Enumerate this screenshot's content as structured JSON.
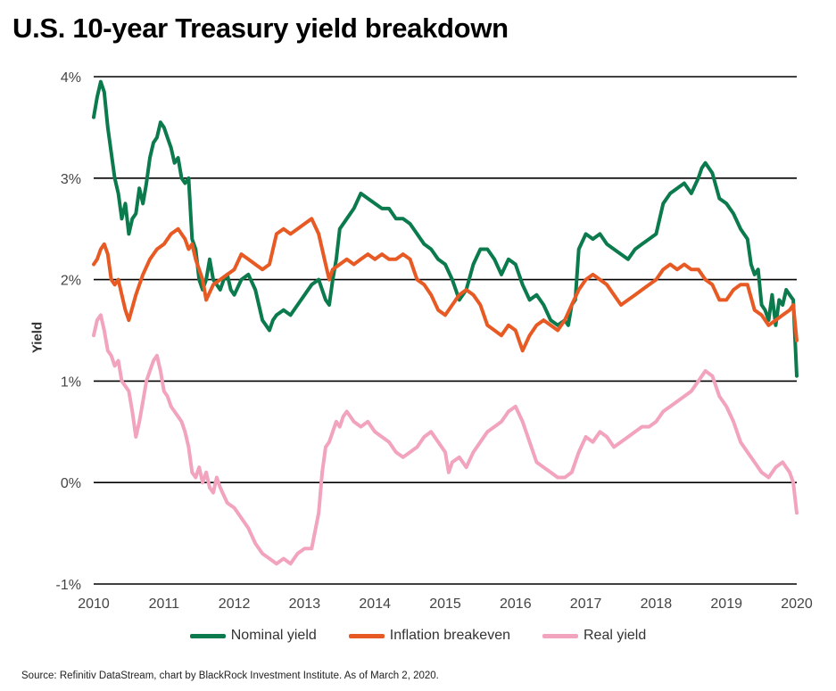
{
  "title": "U.S. 10-year Treasury yield breakdown",
  "source": "Source: Refinitiv DataStream, chart by BlackRock Investment Institute. As of March 2, 2020.",
  "chart_data": {
    "type": "line",
    "title": "U.S. 10-year Treasury yield breakdown",
    "xlabel": "",
    "ylabel": "Yield",
    "xlim": [
      2010,
      2020
    ],
    "ylim": [
      -1,
      4
    ],
    "x_ticks": [
      "2010",
      "2011",
      "2012",
      "2013",
      "2014",
      "2015",
      "2016",
      "2017",
      "2018",
      "2019",
      "2020"
    ],
    "y_ticks": [
      {
        "value": 4,
        "label": "4%"
      },
      {
        "value": 3,
        "label": "3%"
      },
      {
        "value": 2,
        "label": "2%"
      },
      {
        "value": 1,
        "label": "1%"
      },
      {
        "value": 0,
        "label": "0%"
      },
      {
        "value": -1,
        "label": "-1%"
      }
    ],
    "grid": true,
    "legend_position": "bottom-center",
    "series": [
      {
        "name": "Nominal yield",
        "color": "#0b7a4d",
        "x": [
          2010.0,
          2010.05,
          2010.1,
          2010.15,
          2010.2,
          2010.25,
          2010.3,
          2010.35,
          2010.4,
          2010.45,
          2010.5,
          2010.55,
          2010.6,
          2010.65,
          2010.7,
          2010.75,
          2010.8,
          2010.85,
          2010.9,
          2010.95,
          2011.0,
          2011.05,
          2011.1,
          2011.15,
          2011.2,
          2011.25,
          2011.3,
          2011.35,
          2011.4,
          2011.45,
          2011.5,
          2011.55,
          2011.6,
          2011.65,
          2011.7,
          2011.75,
          2011.8,
          2011.85,
          2011.9,
          2011.95,
          2012.0,
          2012.1,
          2012.2,
          2012.3,
          2012.4,
          2012.45,
          2012.5,
          2012.55,
          2012.6,
          2012.7,
          2012.8,
          2012.9,
          2013.0,
          2013.1,
          2013.2,
          2013.3,
          2013.35,
          2013.4,
          2013.45,
          2013.5,
          2013.6,
          2013.7,
          2013.8,
          2013.9,
          2014.0,
          2014.1,
          2014.2,
          2014.3,
          2014.4,
          2014.5,
          2014.6,
          2014.7,
          2014.8,
          2014.9,
          2015.0,
          2015.1,
          2015.2,
          2015.3,
          2015.4,
          2015.5,
          2015.6,
          2015.7,
          2015.8,
          2015.9,
          2016.0,
          2016.1,
          2016.2,
          2016.3,
          2016.4,
          2016.5,
          2016.6,
          2016.7,
          2016.75,
          2016.8,
          2016.85,
          2016.9,
          2017.0,
          2017.1,
          2017.2,
          2017.3,
          2017.4,
          2017.5,
          2017.6,
          2017.7,
          2017.8,
          2017.9,
          2018.0,
          2018.1,
          2018.2,
          2018.3,
          2018.4,
          2018.5,
          2018.6,
          2018.65,
          2018.7,
          2018.8,
          2018.9,
          2019.0,
          2019.1,
          2019.2,
          2019.3,
          2019.35,
          2019.4,
          2019.45,
          2019.5,
          2019.55,
          2019.6,
          2019.65,
          2019.7,
          2019.75,
          2019.8,
          2019.85,
          2019.9,
          2019.95,
          2020.0
        ],
        "values": [
          3.6,
          3.8,
          3.95,
          3.85,
          3.5,
          3.25,
          3.0,
          2.85,
          2.6,
          2.75,
          2.45,
          2.6,
          2.65,
          2.9,
          2.75,
          2.95,
          3.2,
          3.35,
          3.4,
          3.55,
          3.5,
          3.4,
          3.3,
          3.15,
          3.2,
          3.0,
          2.95,
          3.0,
          2.4,
          2.3,
          2.0,
          1.9,
          2.0,
          2.2,
          2.0,
          1.95,
          1.9,
          2.0,
          2.05,
          1.9,
          1.85,
          2.0,
          2.05,
          1.9,
          1.6,
          1.55,
          1.5,
          1.6,
          1.65,
          1.7,
          1.65,
          1.75,
          1.85,
          1.95,
          2.0,
          1.8,
          1.75,
          2.0,
          2.2,
          2.5,
          2.6,
          2.7,
          2.85,
          2.8,
          2.75,
          2.7,
          2.7,
          2.6,
          2.6,
          2.55,
          2.45,
          2.35,
          2.3,
          2.2,
          2.15,
          2.0,
          1.8,
          1.9,
          2.15,
          2.3,
          2.3,
          2.2,
          2.05,
          2.2,
          2.15,
          1.95,
          1.8,
          1.85,
          1.75,
          1.6,
          1.55,
          1.6,
          1.55,
          1.75,
          1.8,
          2.3,
          2.45,
          2.4,
          2.45,
          2.35,
          2.3,
          2.25,
          2.2,
          2.3,
          2.35,
          2.4,
          2.45,
          2.75,
          2.85,
          2.9,
          2.95,
          2.85,
          3.0,
          3.1,
          3.15,
          3.05,
          2.8,
          2.75,
          2.65,
          2.5,
          2.4,
          2.15,
          2.05,
          2.1,
          1.75,
          1.7,
          1.6,
          1.85,
          1.55,
          1.8,
          1.75,
          1.9,
          1.85,
          1.8,
          1.05
        ]
      },
      {
        "name": "Inflation breakeven",
        "color": "#e85a24",
        "x": [
          2010.0,
          2010.05,
          2010.1,
          2010.15,
          2010.2,
          2010.25,
          2010.3,
          2010.35,
          2010.4,
          2010.45,
          2010.5,
          2010.6,
          2010.7,
          2010.8,
          2010.9,
          2011.0,
          2011.1,
          2011.2,
          2011.3,
          2011.35,
          2011.4,
          2011.45,
          2011.5,
          2011.55,
          2011.6,
          2011.7,
          2011.8,
          2011.9,
          2012.0,
          2012.1,
          2012.2,
          2012.3,
          2012.4,
          2012.5,
          2012.6,
          2012.7,
          2012.8,
          2012.9,
          2013.0,
          2013.1,
          2013.2,
          2013.25,
          2013.3,
          2013.35,
          2013.4,
          2013.5,
          2013.6,
          2013.7,
          2013.8,
          2013.9,
          2014.0,
          2014.1,
          2014.2,
          2014.3,
          2014.4,
          2014.5,
          2014.55,
          2014.6,
          2014.7,
          2014.8,
          2014.9,
          2015.0,
          2015.1,
          2015.2,
          2015.3,
          2015.4,
          2015.5,
          2015.6,
          2015.7,
          2015.8,
          2015.9,
          2016.0,
          2016.1,
          2016.2,
          2016.3,
          2016.4,
          2016.5,
          2016.6,
          2016.7,
          2016.8,
          2016.9,
          2017.0,
          2017.1,
          2017.2,
          2017.3,
          2017.4,
          2017.5,
          2017.6,
          2017.7,
          2017.8,
          2017.9,
          2018.0,
          2018.1,
          2018.2,
          2018.3,
          2018.4,
          2018.5,
          2018.6,
          2018.7,
          2018.8,
          2018.9,
          2019.0,
          2019.1,
          2019.2,
          2019.3,
          2019.4,
          2019.5,
          2019.6,
          2019.7,
          2019.8,
          2019.9,
          2019.95,
          2020.0
        ],
        "values": [
          2.15,
          2.2,
          2.3,
          2.35,
          2.25,
          2.0,
          1.95,
          2.0,
          1.85,
          1.7,
          1.6,
          1.85,
          2.05,
          2.2,
          2.3,
          2.35,
          2.45,
          2.5,
          2.4,
          2.3,
          2.35,
          2.2,
          2.1,
          2.0,
          1.8,
          1.95,
          2.0,
          2.05,
          2.1,
          2.25,
          2.2,
          2.15,
          2.1,
          2.15,
          2.45,
          2.5,
          2.45,
          2.5,
          2.55,
          2.6,
          2.45,
          2.3,
          2.15,
          2.0,
          2.1,
          2.15,
          2.2,
          2.15,
          2.2,
          2.25,
          2.2,
          2.25,
          2.2,
          2.2,
          2.25,
          2.2,
          2.1,
          2.0,
          1.95,
          1.85,
          1.7,
          1.65,
          1.75,
          1.85,
          1.9,
          1.85,
          1.75,
          1.55,
          1.5,
          1.45,
          1.55,
          1.5,
          1.3,
          1.45,
          1.55,
          1.6,
          1.55,
          1.5,
          1.6,
          1.75,
          1.9,
          2.0,
          2.05,
          2.0,
          1.95,
          1.85,
          1.75,
          1.8,
          1.85,
          1.9,
          1.95,
          2.0,
          2.1,
          2.15,
          2.1,
          2.15,
          2.1,
          2.1,
          2.0,
          1.95,
          1.8,
          1.8,
          1.9,
          1.95,
          1.95,
          1.7,
          1.65,
          1.55,
          1.6,
          1.65,
          1.7,
          1.75,
          1.4
        ]
      },
      {
        "name": "Real yield",
        "color": "#f2a3be",
        "x": [
          2010.0,
          2010.05,
          2010.1,
          2010.15,
          2010.2,
          2010.25,
          2010.3,
          2010.35,
          2010.4,
          2010.45,
          2010.5,
          2010.55,
          2010.6,
          2010.65,
          2010.7,
          2010.75,
          2010.8,
          2010.85,
          2010.9,
          2010.95,
          2011.0,
          2011.05,
          2011.1,
          2011.15,
          2011.2,
          2011.25,
          2011.3,
          2011.35,
          2011.4,
          2011.45,
          2011.5,
          2011.55,
          2011.6,
          2011.65,
          2011.7,
          2011.75,
          2011.8,
          2011.9,
          2012.0,
          2012.1,
          2012.2,
          2012.3,
          2012.4,
          2012.5,
          2012.6,
          2012.7,
          2012.8,
          2012.9,
          2013.0,
          2013.1,
          2013.2,
          2013.25,
          2013.3,
          2013.35,
          2013.4,
          2013.45,
          2013.5,
          2013.55,
          2013.6,
          2013.7,
          2013.8,
          2013.9,
          2014.0,
          2014.1,
          2014.2,
          2014.3,
          2014.4,
          2014.5,
          2014.6,
          2014.7,
          2014.8,
          2014.9,
          2015.0,
          2015.05,
          2015.1,
          2015.2,
          2015.3,
          2015.4,
          2015.5,
          2015.6,
          2015.7,
          2015.8,
          2015.9,
          2016.0,
          2016.1,
          2016.2,
          2016.3,
          2016.4,
          2016.5,
          2016.6,
          2016.7,
          2016.8,
          2016.9,
          2017.0,
          2017.1,
          2017.2,
          2017.3,
          2017.4,
          2017.5,
          2017.6,
          2017.7,
          2017.8,
          2017.9,
          2018.0,
          2018.1,
          2018.2,
          2018.3,
          2018.4,
          2018.5,
          2018.6,
          2018.7,
          2018.8,
          2018.9,
          2019.0,
          2019.1,
          2019.2,
          2019.3,
          2019.4,
          2019.5,
          2019.6,
          2019.7,
          2019.8,
          2019.9,
          2019.95,
          2020.0
        ],
        "values": [
          1.45,
          1.6,
          1.65,
          1.5,
          1.3,
          1.25,
          1.15,
          1.2,
          1.0,
          0.95,
          0.9,
          0.7,
          0.45,
          0.6,
          0.8,
          1.0,
          1.1,
          1.2,
          1.25,
          1.1,
          0.9,
          0.85,
          0.75,
          0.7,
          0.65,
          0.6,
          0.5,
          0.35,
          0.1,
          0.05,
          0.15,
          0.0,
          0.1,
          -0.05,
          -0.1,
          0.05,
          -0.05,
          -0.2,
          -0.25,
          -0.35,
          -0.45,
          -0.6,
          -0.7,
          -0.75,
          -0.8,
          -0.75,
          -0.8,
          -0.7,
          -0.65,
          -0.65,
          -0.3,
          0.1,
          0.35,
          0.4,
          0.5,
          0.6,
          0.55,
          0.65,
          0.7,
          0.6,
          0.55,
          0.6,
          0.5,
          0.45,
          0.4,
          0.3,
          0.25,
          0.3,
          0.35,
          0.45,
          0.5,
          0.4,
          0.3,
          0.1,
          0.2,
          0.25,
          0.15,
          0.3,
          0.4,
          0.5,
          0.55,
          0.6,
          0.7,
          0.75,
          0.6,
          0.4,
          0.2,
          0.15,
          0.1,
          0.05,
          0.05,
          0.1,
          0.3,
          0.45,
          0.4,
          0.5,
          0.45,
          0.35,
          0.4,
          0.45,
          0.5,
          0.55,
          0.55,
          0.6,
          0.7,
          0.75,
          0.8,
          0.85,
          0.9,
          1.0,
          1.1,
          1.05,
          0.85,
          0.75,
          0.6,
          0.4,
          0.3,
          0.2,
          0.1,
          0.05,
          0.15,
          0.2,
          0.1,
          0.0,
          -0.3
        ]
      }
    ]
  }
}
